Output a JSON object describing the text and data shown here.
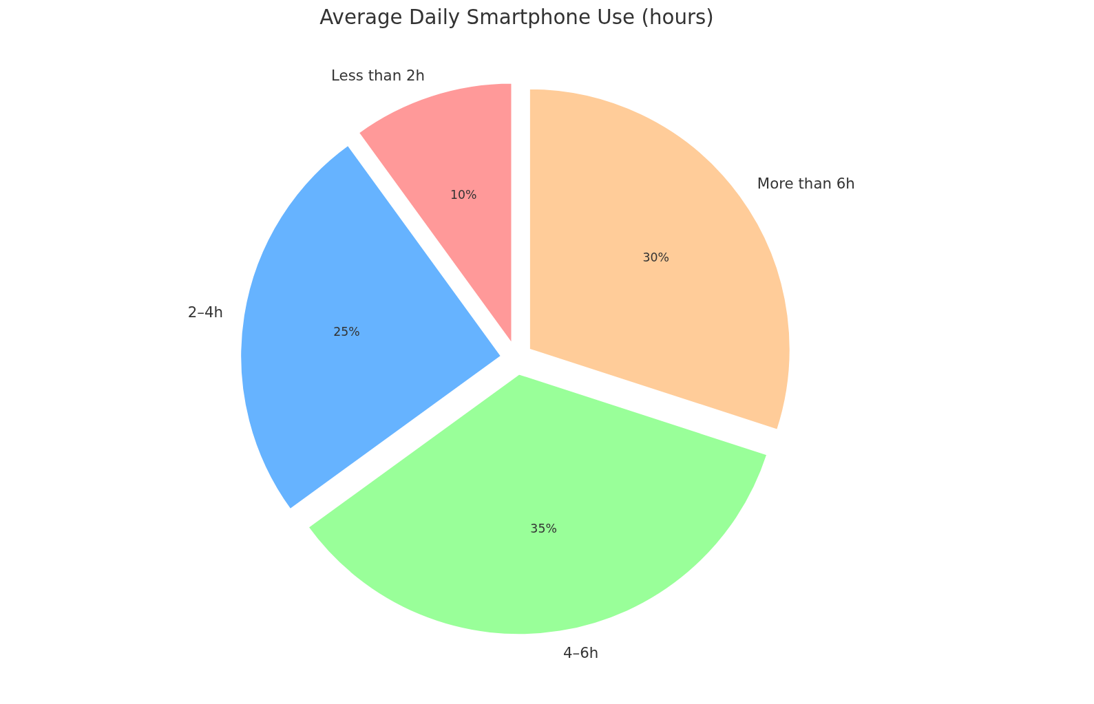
{
  "chart_data": {
    "type": "pie",
    "title": "Average Daily Smartphone Use (hours)",
    "categories": [
      "Less than 2h",
      "2–4h",
      "4–6h",
      "More than 6h"
    ],
    "values": [
      10,
      25,
      35,
      30
    ],
    "colors": [
      "#ff9999",
      "#66b3ff",
      "#99ff99",
      "#ffcc99"
    ],
    "value_labels": [
      "10%",
      "25%",
      "35%",
      "30%"
    ]
  }
}
